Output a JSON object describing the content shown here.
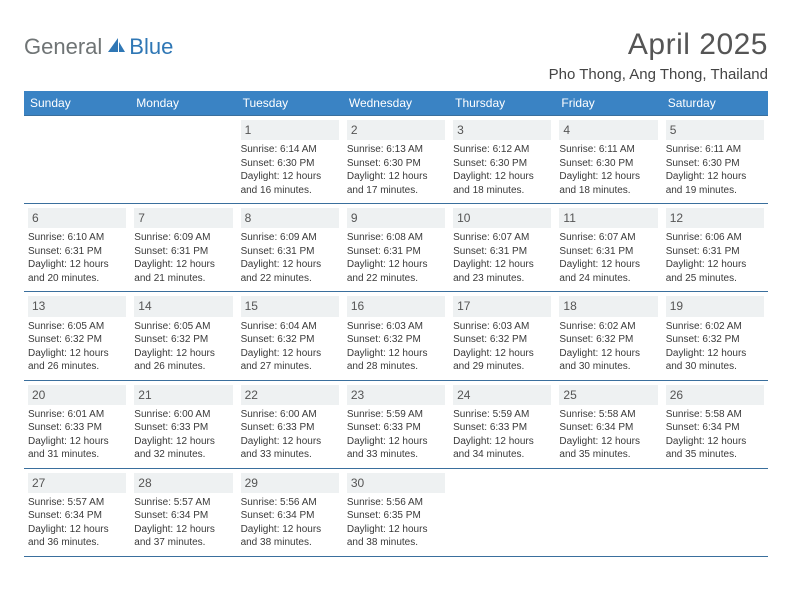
{
  "logo": {
    "gray": "General",
    "blue": "Blue"
  },
  "title": "April 2025",
  "location": "Pho Thong, Ang Thong, Thailand",
  "colors": {
    "header_bg": "#3a83c4",
    "header_text": "#ffffff",
    "daynum_bg": "#eef1f2",
    "rule": "#3a6f9d",
    "logo_gray": "#6f7475",
    "logo_blue": "#2f77b5",
    "page_bg": "#ffffff"
  },
  "dayHeaders": [
    "Sunday",
    "Monday",
    "Tuesday",
    "Wednesday",
    "Thursday",
    "Friday",
    "Saturday"
  ],
  "weeks": [
    [
      null,
      null,
      {
        "n": "1",
        "sr": "Sunrise: 6:14 AM",
        "ss": "Sunset: 6:30 PM",
        "d1": "Daylight: 12 hours",
        "d2": "and 16 minutes."
      },
      {
        "n": "2",
        "sr": "Sunrise: 6:13 AM",
        "ss": "Sunset: 6:30 PM",
        "d1": "Daylight: 12 hours",
        "d2": "and 17 minutes."
      },
      {
        "n": "3",
        "sr": "Sunrise: 6:12 AM",
        "ss": "Sunset: 6:30 PM",
        "d1": "Daylight: 12 hours",
        "d2": "and 18 minutes."
      },
      {
        "n": "4",
        "sr": "Sunrise: 6:11 AM",
        "ss": "Sunset: 6:30 PM",
        "d1": "Daylight: 12 hours",
        "d2": "and 18 minutes."
      },
      {
        "n": "5",
        "sr": "Sunrise: 6:11 AM",
        "ss": "Sunset: 6:30 PM",
        "d1": "Daylight: 12 hours",
        "d2": "and 19 minutes."
      }
    ],
    [
      {
        "n": "6",
        "sr": "Sunrise: 6:10 AM",
        "ss": "Sunset: 6:31 PM",
        "d1": "Daylight: 12 hours",
        "d2": "and 20 minutes."
      },
      {
        "n": "7",
        "sr": "Sunrise: 6:09 AM",
        "ss": "Sunset: 6:31 PM",
        "d1": "Daylight: 12 hours",
        "d2": "and 21 minutes."
      },
      {
        "n": "8",
        "sr": "Sunrise: 6:09 AM",
        "ss": "Sunset: 6:31 PM",
        "d1": "Daylight: 12 hours",
        "d2": "and 22 minutes."
      },
      {
        "n": "9",
        "sr": "Sunrise: 6:08 AM",
        "ss": "Sunset: 6:31 PM",
        "d1": "Daylight: 12 hours",
        "d2": "and 22 minutes."
      },
      {
        "n": "10",
        "sr": "Sunrise: 6:07 AM",
        "ss": "Sunset: 6:31 PM",
        "d1": "Daylight: 12 hours",
        "d2": "and 23 minutes."
      },
      {
        "n": "11",
        "sr": "Sunrise: 6:07 AM",
        "ss": "Sunset: 6:31 PM",
        "d1": "Daylight: 12 hours",
        "d2": "and 24 minutes."
      },
      {
        "n": "12",
        "sr": "Sunrise: 6:06 AM",
        "ss": "Sunset: 6:31 PM",
        "d1": "Daylight: 12 hours",
        "d2": "and 25 minutes."
      }
    ],
    [
      {
        "n": "13",
        "sr": "Sunrise: 6:05 AM",
        "ss": "Sunset: 6:32 PM",
        "d1": "Daylight: 12 hours",
        "d2": "and 26 minutes."
      },
      {
        "n": "14",
        "sr": "Sunrise: 6:05 AM",
        "ss": "Sunset: 6:32 PM",
        "d1": "Daylight: 12 hours",
        "d2": "and 26 minutes."
      },
      {
        "n": "15",
        "sr": "Sunrise: 6:04 AM",
        "ss": "Sunset: 6:32 PM",
        "d1": "Daylight: 12 hours",
        "d2": "and 27 minutes."
      },
      {
        "n": "16",
        "sr": "Sunrise: 6:03 AM",
        "ss": "Sunset: 6:32 PM",
        "d1": "Daylight: 12 hours",
        "d2": "and 28 minutes."
      },
      {
        "n": "17",
        "sr": "Sunrise: 6:03 AM",
        "ss": "Sunset: 6:32 PM",
        "d1": "Daylight: 12 hours",
        "d2": "and 29 minutes."
      },
      {
        "n": "18",
        "sr": "Sunrise: 6:02 AM",
        "ss": "Sunset: 6:32 PM",
        "d1": "Daylight: 12 hours",
        "d2": "and 30 minutes."
      },
      {
        "n": "19",
        "sr": "Sunrise: 6:02 AM",
        "ss": "Sunset: 6:32 PM",
        "d1": "Daylight: 12 hours",
        "d2": "and 30 minutes."
      }
    ],
    [
      {
        "n": "20",
        "sr": "Sunrise: 6:01 AM",
        "ss": "Sunset: 6:33 PM",
        "d1": "Daylight: 12 hours",
        "d2": "and 31 minutes."
      },
      {
        "n": "21",
        "sr": "Sunrise: 6:00 AM",
        "ss": "Sunset: 6:33 PM",
        "d1": "Daylight: 12 hours",
        "d2": "and 32 minutes."
      },
      {
        "n": "22",
        "sr": "Sunrise: 6:00 AM",
        "ss": "Sunset: 6:33 PM",
        "d1": "Daylight: 12 hours",
        "d2": "and 33 minutes."
      },
      {
        "n": "23",
        "sr": "Sunrise: 5:59 AM",
        "ss": "Sunset: 6:33 PM",
        "d1": "Daylight: 12 hours",
        "d2": "and 33 minutes."
      },
      {
        "n": "24",
        "sr": "Sunrise: 5:59 AM",
        "ss": "Sunset: 6:33 PM",
        "d1": "Daylight: 12 hours",
        "d2": "and 34 minutes."
      },
      {
        "n": "25",
        "sr": "Sunrise: 5:58 AM",
        "ss": "Sunset: 6:34 PM",
        "d1": "Daylight: 12 hours",
        "d2": "and 35 minutes."
      },
      {
        "n": "26",
        "sr": "Sunrise: 5:58 AM",
        "ss": "Sunset: 6:34 PM",
        "d1": "Daylight: 12 hours",
        "d2": "and 35 minutes."
      }
    ],
    [
      {
        "n": "27",
        "sr": "Sunrise: 5:57 AM",
        "ss": "Sunset: 6:34 PM",
        "d1": "Daylight: 12 hours",
        "d2": "and 36 minutes."
      },
      {
        "n": "28",
        "sr": "Sunrise: 5:57 AM",
        "ss": "Sunset: 6:34 PM",
        "d1": "Daylight: 12 hours",
        "d2": "and 37 minutes."
      },
      {
        "n": "29",
        "sr": "Sunrise: 5:56 AM",
        "ss": "Sunset: 6:34 PM",
        "d1": "Daylight: 12 hours",
        "d2": "and 38 minutes."
      },
      {
        "n": "30",
        "sr": "Sunrise: 5:56 AM",
        "ss": "Sunset: 6:35 PM",
        "d1": "Daylight: 12 hours",
        "d2": "and 38 minutes."
      },
      null,
      null,
      null
    ]
  ]
}
